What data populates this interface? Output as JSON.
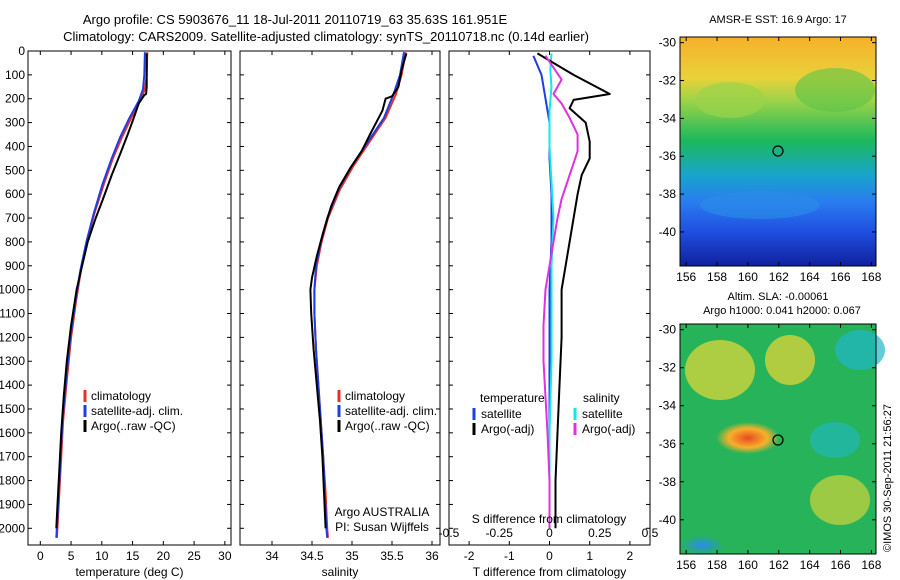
{
  "header": {
    "line1": "Argo profile: CS 5903676_11 18-Jul-2011 20110719_63 35.63S 161.951E",
    "line2": "Climatology: CARS2009. Satellite-adjusted climatology: synTS_20110718.nc (0.14d earlier)"
  },
  "sidebar_stamp": "©IMOS 30-Sep-2011 21:56:27",
  "colors": {
    "climatology": "#e8302a",
    "satellite": "#1f3de0",
    "argo": "#000000",
    "satellite_diff": "#12e8e8",
    "argo_diff": "#e030e0"
  },
  "chart_data": [
    {
      "id": "temperature",
      "type": "line",
      "xlabel": "temperature (deg C)",
      "ylabel": "",
      "xlim": [
        -2,
        31
      ],
      "ylim": [
        2070,
        0
      ],
      "xticks": [
        0,
        5,
        10,
        15,
        20,
        25,
        30
      ],
      "yticks": [
        0,
        100,
        200,
        300,
        400,
        500,
        600,
        700,
        800,
        900,
        1000,
        1100,
        1200,
        1300,
        1400,
        1500,
        1600,
        1700,
        1800,
        1900,
        2000
      ],
      "legend": {
        "items": [
          "climatology",
          "satellite-adj. clim.",
          "Argo(..raw -QC)"
        ]
      },
      "series": [
        {
          "name": "climatology",
          "color": "#e8302a",
          "points": [
            [
              17.4,
              5
            ],
            [
              17.3,
              100
            ],
            [
              17.0,
              160
            ],
            [
              16.2,
              210
            ],
            [
              14.8,
              280
            ],
            [
              13.3,
              360
            ],
            [
              11.8,
              450
            ],
            [
              10.3,
              560
            ],
            [
              8.8,
              680
            ],
            [
              7.6,
              800
            ],
            [
              6.6,
              920
            ],
            [
              5.8,
              1050
            ],
            [
              5.0,
              1200
            ],
            [
              4.3,
              1380
            ],
            [
              3.7,
              1550
            ],
            [
              3.3,
              1750
            ],
            [
              2.9,
              1950
            ],
            [
              2.7,
              2040
            ]
          ]
        },
        {
          "name": "satellite-adj. clim.",
          "color": "#1f3de0",
          "points": [
            [
              17.0,
              5
            ],
            [
              16.9,
              100
            ],
            [
              16.7,
              160
            ],
            [
              16.0,
              210
            ],
            [
              14.5,
              280
            ],
            [
              13.0,
              360
            ],
            [
              11.6,
              450
            ],
            [
              10.1,
              560
            ],
            [
              8.7,
              680
            ],
            [
              7.5,
              800
            ],
            [
              6.5,
              920
            ],
            [
              5.7,
              1050
            ],
            [
              4.9,
              1200
            ],
            [
              4.2,
              1380
            ],
            [
              3.6,
              1550
            ],
            [
              3.2,
              1750
            ],
            [
              2.8,
              1950
            ],
            [
              2.6,
              2040
            ]
          ]
        },
        {
          "name": "Argo(..raw -QC)",
          "color": "#000000",
          "points": [
            [
              17.3,
              10
            ],
            [
              17.3,
              80
            ],
            [
              17.3,
              150
            ],
            [
              17.2,
              180
            ],
            [
              16.9,
              185
            ],
            [
              16.0,
              220
            ],
            [
              15.2,
              280
            ],
            [
              14.2,
              350
            ],
            [
              13.0,
              430
            ],
            [
              11.6,
              520
            ],
            [
              10.2,
              620
            ],
            [
              9.0,
              700
            ],
            [
              7.7,
              800
            ],
            [
              6.8,
              900
            ],
            [
              5.9,
              1000
            ],
            [
              5.0,
              1150
            ],
            [
              4.3,
              1300
            ],
            [
              3.8,
              1450
            ],
            [
              3.4,
              1600
            ],
            [
              3.1,
              1750
            ],
            [
              2.8,
              1900
            ],
            [
              2.6,
              2000
            ]
          ]
        }
      ]
    },
    {
      "id": "salinity",
      "type": "line",
      "xlabel": "salinity",
      "ylabel": "",
      "xlim": [
        33.6,
        36.1
      ],
      "ylim": [
        2070,
        0
      ],
      "xticks": [
        34,
        34.5,
        35,
        35.5,
        36
      ],
      "legend": {
        "items": [
          "climatology",
          "satellite-adj. clim.",
          "Argo(..raw -QC)"
        ]
      },
      "annotations": [
        "Argo AUSTRALIA",
        "PI: Susan Wijffels"
      ],
      "series": [
        {
          "name": "climatology",
          "color": "#e8302a",
          "points": [
            [
              35.67,
              5
            ],
            [
              35.62,
              100
            ],
            [
              35.55,
              180
            ],
            [
              35.42,
              280
            ],
            [
              35.22,
              380
            ],
            [
              35.02,
              480
            ],
            [
              34.85,
              580
            ],
            [
              34.7,
              700
            ],
            [
              34.62,
              800
            ],
            [
              34.56,
              900
            ],
            [
              34.53,
              1000
            ],
            [
              34.53,
              1100
            ],
            [
              34.55,
              1250
            ],
            [
              34.58,
              1400
            ],
            [
              34.61,
              1550
            ],
            [
              34.64,
              1700
            ],
            [
              34.67,
              1850
            ],
            [
              34.69,
              2000
            ],
            [
              34.7,
              2040
            ]
          ]
        },
        {
          "name": "satellite-adj. clim.",
          "color": "#1f3de0",
          "points": [
            [
              35.65,
              5
            ],
            [
              35.6,
              100
            ],
            [
              35.52,
              180
            ],
            [
              35.4,
              280
            ],
            [
              35.2,
              380
            ],
            [
              35.0,
              480
            ],
            [
              34.83,
              580
            ],
            [
              34.69,
              700
            ],
            [
              34.61,
              800
            ],
            [
              34.55,
              900
            ],
            [
              34.53,
              1000
            ],
            [
              34.53,
              1100
            ],
            [
              34.55,
              1250
            ],
            [
              34.58,
              1400
            ],
            [
              34.61,
              1550
            ],
            [
              34.64,
              1700
            ],
            [
              34.66,
              1850
            ],
            [
              34.68,
              2000
            ],
            [
              34.69,
              2040
            ]
          ]
        },
        {
          "name": "Argo(..raw -QC)",
          "color": "#000000",
          "points": [
            [
              35.68,
              10
            ],
            [
              35.62,
              80
            ],
            [
              35.58,
              150
            ],
            [
              35.5,
              190
            ],
            [
              35.42,
              200
            ],
            [
              35.38,
              250
            ],
            [
              35.24,
              340
            ],
            [
              35.12,
              420
            ],
            [
              34.98,
              490
            ],
            [
              34.84,
              570
            ],
            [
              34.74,
              650
            ],
            [
              34.64,
              760
            ],
            [
              34.56,
              860
            ],
            [
              34.5,
              950
            ],
            [
              34.48,
              1000
            ],
            [
              34.49,
              1100
            ],
            [
              34.52,
              1250
            ],
            [
              34.56,
              1400
            ],
            [
              34.6,
              1550
            ],
            [
              34.63,
              1700
            ],
            [
              34.65,
              1850
            ],
            [
              34.67,
              2000
            ]
          ]
        }
      ]
    },
    {
      "id": "differences",
      "type": "line",
      "xlabel": "T difference from climatology",
      "top_label": "S difference from climatology",
      "xlim": [
        -2.5,
        2.5
      ],
      "ylim": [
        2070,
        0
      ],
      "xticks": [
        -2,
        -1,
        0,
        1,
        2
      ],
      "xtick_labels": [
        "-2",
        "-1",
        "0",
        "1",
        "2"
      ],
      "s_ticks": [
        -0.5,
        -0.25,
        0,
        0.25,
        0.5
      ],
      "s_tick_labels": [
        "-0.5",
        "-0.25",
        "0",
        "0.25",
        "0.5"
      ],
      "legend": {
        "temperature_title": "temperature",
        "salinity_title": "salinity",
        "temperature_items": [
          "satellite",
          "Argo(-adj)"
        ],
        "salinity_items": [
          "satellite",
          "Argo(-adj)"
        ]
      },
      "series": [
        {
          "name": "satellite",
          "variable": "temperature",
          "color": "#1f3de0",
          "points": [
            [
              -0.4,
              20
            ],
            [
              -0.2,
              100
            ],
            [
              -0.1,
              200
            ],
            [
              0.0,
              300
            ],
            [
              0.0,
              450
            ],
            [
              0.05,
              600
            ],
            [
              0.05,
              800
            ],
            [
              0.0,
              1000
            ],
            [
              0.0,
              1300
            ],
            [
              0.0,
              1600
            ],
            [
              0.0,
              2000
            ]
          ]
        },
        {
          "name": "satellite",
          "variable": "salinity",
          "color": "#12e8e8",
          "points": [
            [
              0.05,
              10
            ],
            [
              0.02,
              80
            ],
            [
              0.05,
              150
            ],
            [
              0.0,
              250
            ],
            [
              0.0,
              400
            ],
            [
              0.05,
              550
            ],
            [
              0.1,
              700
            ],
            [
              0.05,
              900
            ],
            [
              0.05,
              1100
            ],
            [
              0.05,
              1300
            ],
            [
              0.0,
              1600
            ],
            [
              0.0,
              2000
            ]
          ]
        },
        {
          "name": "Argo(-adj)",
          "variable": "temperature",
          "color": "#000000",
          "points": [
            [
              -0.3,
              10
            ],
            [
              0.6,
              100
            ],
            [
              1.5,
              180
            ],
            [
              0.6,
              205
            ],
            [
              0.5,
              240
            ],
            [
              0.9,
              300
            ],
            [
              1.0,
              380
            ],
            [
              1.0,
              450
            ],
            [
              0.8,
              520
            ],
            [
              0.7,
              600
            ],
            [
              0.6,
              700
            ],
            [
              0.5,
              800
            ],
            [
              0.4,
              900
            ],
            [
              0.3,
              1000
            ],
            [
              0.3,
              1200
            ],
            [
              0.25,
              1400
            ],
            [
              0.2,
              1600
            ],
            [
              0.15,
              1800
            ],
            [
              0.15,
              2000
            ]
          ]
        },
        {
          "name": "Argo(-adj)",
          "variable": "salinity",
          "color": "#e030e0",
          "points": [
            [
              -0.1,
              20
            ],
            [
              0.3,
              120
            ],
            [
              0.1,
              180
            ],
            [
              0.3,
              220
            ],
            [
              0.5,
              280
            ],
            [
              0.7,
              350
            ],
            [
              0.7,
              420
            ],
            [
              0.5,
              520
            ],
            [
              0.3,
              620
            ],
            [
              0.2,
              700
            ],
            [
              0.1,
              800
            ],
            [
              0.0,
              900
            ],
            [
              -0.1,
              1000
            ],
            [
              -0.15,
              1150
            ],
            [
              -0.15,
              1300
            ],
            [
              -0.1,
              1450
            ],
            [
              -0.05,
              1600
            ],
            [
              0.0,
              1800
            ],
            [
              0.0,
              2000
            ]
          ]
        }
      ]
    }
  ],
  "maps": [
    {
      "id": "sst_map",
      "title_lines": [
        "AMSR-E SST: 16.9 Argo: 17"
      ],
      "lon_ticks": [
        "156",
        "158",
        "160",
        "162",
        "164",
        "166",
        "168"
      ],
      "lat_ticks": [
        "-30",
        "-32",
        "-34",
        "-36",
        "-38",
        "-40"
      ],
      "marker": {
        "lon": 161.95,
        "lat": -35.63
      }
    },
    {
      "id": "sla_map",
      "title_lines": [
        "Altim. SLA: -0.00061",
        "Argo h1000: 0.041 h2000: 0.067"
      ],
      "lon_ticks": [
        "156",
        "158",
        "160",
        "162",
        "164",
        "166",
        "168"
      ],
      "lat_ticks": [
        "-30",
        "-32",
        "-34",
        "-36",
        "-38",
        "-40"
      ],
      "marker": {
        "lon": 161.95,
        "lat": -35.63
      }
    }
  ]
}
